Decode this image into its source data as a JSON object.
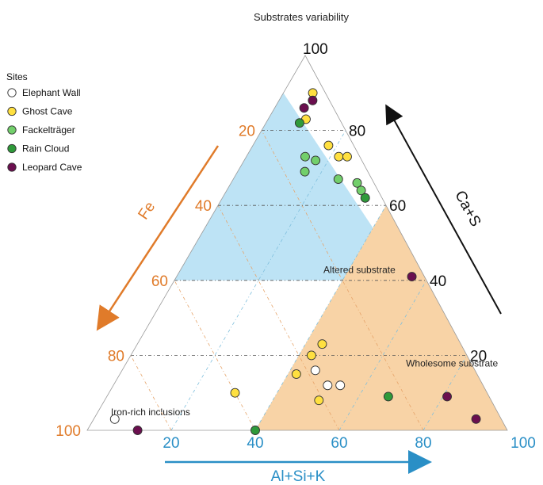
{
  "chart_data": {
    "type": "scatter",
    "subtype": "ternary",
    "title": "Substrates variability",
    "axes": {
      "right": {
        "label": "Ca+S",
        "ticks": [
          "20",
          "40",
          "60",
          "80",
          "100"
        ],
        "color": "#111111"
      },
      "left": {
        "label": "Fe",
        "ticks": [
          "20",
          "40",
          "60",
          "80",
          "100"
        ],
        "color": "#E07B2A"
      },
      "bottom": {
        "label": "Al+Si+K",
        "ticks": [
          "20",
          "40",
          "60",
          "80",
          "100"
        ],
        "color": "#2A8FC6"
      }
    },
    "legend_title": "Sites",
    "legend_position": "top-left",
    "series": [
      {
        "name": "Elephant Wall",
        "color": "#FFFFFF",
        "points": [
          {
            "fe": 92,
            "al_si_k": 5,
            "ca_s": 3
          },
          {
            "fe": 37,
            "al_si_k": 51,
            "ca_s": 12
          },
          {
            "fe": 34,
            "al_si_k": 54,
            "ca_s": 12
          },
          {
            "fe": 38,
            "al_si_k": 46,
            "ca_s": 16
          }
        ]
      },
      {
        "name": "Ghost Cave",
        "color": "#FFE040",
        "points": [
          {
            "fe": 3,
            "al_si_k": 7,
            "ca_s": 90
          },
          {
            "fe": 8,
            "al_si_k": 9,
            "ca_s": 83
          },
          {
            "fe": 6,
            "al_si_k": 18,
            "ca_s": 76
          },
          {
            "fe": 5,
            "al_si_k": 22,
            "ca_s": 73
          },
          {
            "fe": 3,
            "al_si_k": 24,
            "ca_s": 73
          },
          {
            "fe": 37,
            "al_si_k": 43,
            "ca_s": 20
          },
          {
            "fe": 33,
            "al_si_k": 44,
            "ca_s": 23
          },
          {
            "fe": 43,
            "al_si_k": 42,
            "ca_s": 15
          },
          {
            "fe": 60,
            "al_si_k": 30,
            "ca_s": 10
          },
          {
            "fe": 41,
            "al_si_k": 51,
            "ca_s": 8
          }
        ]
      },
      {
        "name": "Fackelträger",
        "color": "#72CF6B",
        "points": [
          {
            "fe": 13,
            "al_si_k": 14,
            "ca_s": 73
          },
          {
            "fe": 11,
            "al_si_k": 17,
            "ca_s": 72
          },
          {
            "fe": 15,
            "al_si_k": 16,
            "ca_s": 69
          },
          {
            "fe": 8,
            "al_si_k": 25,
            "ca_s": 67
          },
          {
            "fe": 4,
            "al_si_k": 30,
            "ca_s": 66
          },
          {
            "fe": 4,
            "al_si_k": 32,
            "ca_s": 64
          }
        ]
      },
      {
        "name": "Rain Cloud",
        "color": "#2F9A3A",
        "points": [
          {
            "fe": 10,
            "al_si_k": 8,
            "ca_s": 82
          },
          {
            "fe": 4,
            "al_si_k": 34,
            "ca_s": 62
          },
          {
            "fe": 24,
            "al_si_k": 67,
            "ca_s": 9
          },
          {
            "fe": 60,
            "al_si_k": 40,
            "ca_s": 0
          }
        ]
      },
      {
        "name": "Leopard Cave",
        "color": "#6B0F4F",
        "points": [
          {
            "fe": 4,
            "al_si_k": 8,
            "ca_s": 88
          },
          {
            "fe": 7,
            "al_si_k": 7,
            "ca_s": 86
          },
          {
            "fe": 3,
            "al_si_k": 56,
            "ca_s": 41
          },
          {
            "fe": 10,
            "al_si_k": 81,
            "ca_s": 9
          },
          {
            "fe": 6,
            "al_si_k": 91,
            "ca_s": 3
          },
          {
            "fe": 88,
            "al_si_k": 12,
            "ca_s": 0
          }
        ]
      }
    ],
    "regions": [
      {
        "name": "Altered substrate",
        "color": "#BDE3F5",
        "vertices": [
          [
            0,
            100,
            0
          ],
          [
            10,
            0,
            90
          ],
          [
            60,
            0,
            40
          ],
          [
            0,
            60,
            40
          ]
        ]
      },
      {
        "name": "Wholesome substrate",
        "color": "#F8D3A6",
        "vertices": [
          [
            0,
            40,
            60
          ],
          [
            0,
            100,
            0
          ],
          [
            20,
            80,
            0
          ],
          [
            60,
            40,
            0
          ]
        ]
      },
      {
        "name": "Iron-rich inclusions",
        "color": "#C8C8C8",
        "vertices": [
          [
            0,
            100,
            0
          ],
          [
            80,
            20,
            0
          ],
          [
            20,
            80,
            0
          ]
        ]
      }
    ],
    "grid": true
  }
}
